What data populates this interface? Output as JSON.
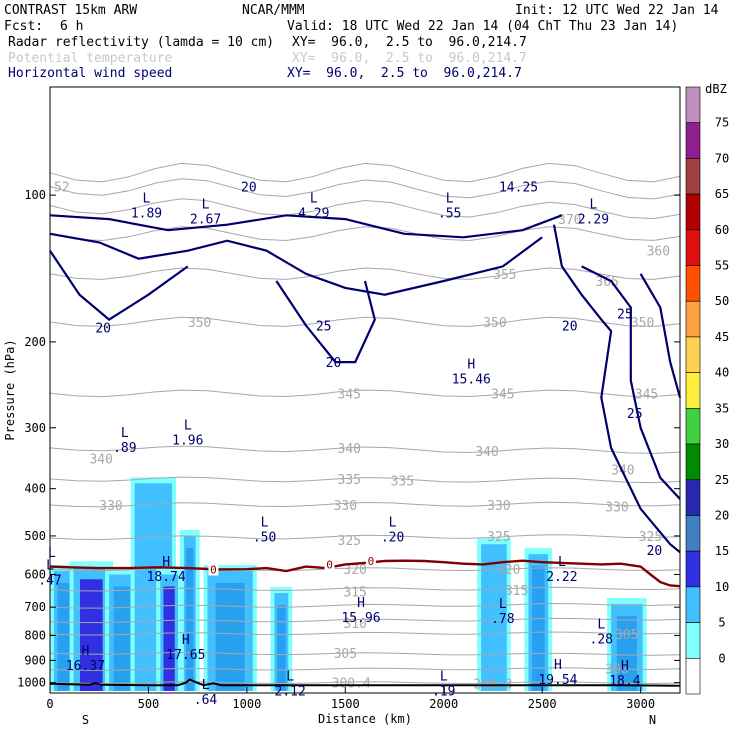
{
  "header": {
    "model": "CONTRAST 15km ARW",
    "org": "NCAR/MMM",
    "init": "Init: 12 UTC Wed 22 Jan 14",
    "fcst_label": "Fcst:",
    "fcst_value": "6 h",
    "valid": "Valid: 18 UTC Wed 22 Jan 14 (04 ChT Thu 23 Jan 14)",
    "fields": [
      {
        "name": "Radar reflectivity (lamda = 10 cm)",
        "xy": "XY=  96.0,  2.5 to  96.0,214.7"
      },
      {
        "name": "Potential temperature",
        "xy": "XY=  96.0,  2.5 to  96.0,214.7"
      },
      {
        "name": "Horizontal wind speed",
        "xy": "XY=  96.0,  2.5 to  96.0,214.7"
      }
    ]
  },
  "colors": {
    "reflectivity": [
      "#ffffff",
      "#80ffff",
      "#40c0ff",
      "#28a0f0",
      "#3030e0",
      "#2828b0",
      "#4060a0",
      "#8020a0",
      "#a040a0",
      "#c080c0"
    ],
    "levels_high": [
      "#ff9e40",
      "#ff6a00",
      "#ff2a00",
      "#d80000",
      "#b00000",
      "#a03030",
      "#902090",
      "#b070b0",
      "#d0a0d0"
    ],
    "theta": "#a8a8a8",
    "wind": "#00006e",
    "freezing": "#800000",
    "terrain": "#000000"
  },
  "chart_data": {
    "type": "cross-section",
    "x": {
      "label": "Distance (km)",
      "range": [
        0,
        3200
      ],
      "ticks": [
        0,
        500,
        1000,
        1500,
        2000,
        2500,
        3000
      ],
      "left_end": "S",
      "right_end": "N"
    },
    "y": {
      "label": "Pressure (hPa)",
      "range": [
        1050,
        60
      ],
      "scale": "log",
      "ticks": [
        100,
        200,
        300,
        400,
        500,
        600,
        700,
        800,
        900,
        1000
      ]
    },
    "colorbar": {
      "unit": "dBZ",
      "levels": [
        0,
        5,
        10,
        15,
        20,
        25,
        30,
        35,
        40,
        45,
        50,
        55,
        60,
        65,
        70,
        75
      ]
    },
    "theta_labels": [
      {
        "text": "300.4",
        "x": 1530,
        "p": 1000
      },
      {
        "text": "299.3",
        "x": 2250,
        "p": 1005
      },
      {
        "text": "300",
        "x": 2880,
        "p": 935
      },
      {
        "text": "305",
        "x": 1500,
        "p": 870
      },
      {
        "text": "305",
        "x": 2930,
        "p": 795
      },
      {
        "text": "310",
        "x": 1550,
        "p": 755
      },
      {
        "text": "315",
        "x": 1550,
        "p": 650
      },
      {
        "text": "315",
        "x": 2370,
        "p": 645
      },
      {
        "text": "320",
        "x": 1550,
        "p": 585
      },
      {
        "text": "320",
        "x": 2330,
        "p": 585
      },
      {
        "text": "325",
        "x": 1520,
        "p": 510
      },
      {
        "text": "325",
        "x": 2280,
        "p": 500
      },
      {
        "text": "325",
        "x": 3050,
        "p": 500
      },
      {
        "text": "330",
        "x": 310,
        "p": 432
      },
      {
        "text": "330",
        "x": 1500,
        "p": 432
      },
      {
        "text": "330",
        "x": 2280,
        "p": 432
      },
      {
        "text": "330",
        "x": 2880,
        "p": 435
      },
      {
        "text": "335",
        "x": 1520,
        "p": 382
      },
      {
        "text": "335",
        "x": 1790,
        "p": 385
      },
      {
        "text": "340",
        "x": 2910,
        "p": 365
      },
      {
        "text": "340",
        "x": 1520,
        "p": 330
      },
      {
        "text": "340",
        "x": 2220,
        "p": 335
      },
      {
        "text": "340",
        "x": 260,
        "p": 347
      },
      {
        "text": "345",
        "x": 1520,
        "p": 255
      },
      {
        "text": "345",
        "x": 2300,
        "p": 255
      },
      {
        "text": "345",
        "x": 3030,
        "p": 255
      },
      {
        "text": "350",
        "x": 760,
        "p": 182
      },
      {
        "text": "350",
        "x": 2260,
        "p": 182
      },
      {
        "text": "350",
        "x": 3010,
        "p": 182
      },
      {
        "text": "355",
        "x": 2310,
        "p": 145
      },
      {
        "text": "360",
        "x": 3090,
        "p": 130
      },
      {
        "text": "365",
        "x": 2830,
        "p": 150
      },
      {
        "text": "370",
        "x": 2640,
        "p": 112
      },
      {
        "text": "52",
        "x": 60,
        "p": 96
      }
    ],
    "wind_labels": [
      {
        "text": "20",
        "x": 1010,
        "p": 96
      },
      {
        "text": "20",
        "x": 270,
        "p": 187
      },
      {
        "text": "20",
        "x": 1440,
        "p": 220
      },
      {
        "text": "20",
        "x": 2640,
        "p": 185
      },
      {
        "text": "20",
        "x": 3070,
        "p": 535
      },
      {
        "text": "25",
        "x": 1390,
        "p": 185
      },
      {
        "text": "25",
        "x": 2920,
        "p": 175
      },
      {
        "text": "25",
        "x": 2970,
        "p": 280
      },
      {
        "text": "14.25",
        "x": 2380,
        "p": 96
      }
    ],
    "freezing_level": {
      "label": "0",
      "x": [
        0,
        100,
        250,
        400,
        550,
        700,
        850,
        1000,
        1100,
        1200,
        1300,
        1400,
        1500,
        1600,
        1700,
        1800,
        1900,
        2000,
        2100,
        2200,
        2300,
        2400,
        2500,
        2600,
        2700,
        2800,
        2900,
        3000,
        3050,
        3100,
        3150,
        3200
      ],
      "p": [
        578,
        580,
        582,
        582,
        580,
        582,
        586,
        585,
        582,
        590,
        578,
        582,
        572,
        568,
        563,
        562,
        563,
        566,
        570,
        572,
        566,
        562,
        566,
        568,
        570,
        572,
        570,
        578,
        600,
        622,
        632,
        634
      ]
    },
    "extrema": [
      {
        "type": "L",
        "value": "1.89",
        "x": 490,
        "p": 105
      },
      {
        "type": "L",
        "value": "2.67",
        "x": 790,
        "p": 108
      },
      {
        "type": "L",
        "value": "4.29",
        "x": 1340,
        "p": 105
      },
      {
        "type": "L",
        "value": ".55",
        "x": 2030,
        "p": 105
      },
      {
        "type": "L",
        "value": "2.29",
        "x": 2760,
        "p": 108
      },
      {
        "type": "H",
        "value": "15.46",
        "x": 2140,
        "p": 230
      },
      {
        "type": "L",
        "value": ".89",
        "x": 380,
        "p": 318
      },
      {
        "type": "L",
        "value": "1.96",
        "x": 700,
        "p": 307
      },
      {
        "type": "L",
        "value": ".50",
        "x": 1090,
        "p": 485
      },
      {
        "type": "L",
        "value": ".20",
        "x": 1740,
        "p": 485
      },
      {
        "type": "L",
        "value": "",
        "x": 10,
        "p": 560
      },
      {
        "type": "L",
        "value": ".47",
        "x": 0,
        "p": 595
      },
      {
        "type": "H",
        "value": "18.74",
        "x": 590,
        "p": 585
      },
      {
        "type": "L",
        "value": "2.22",
        "x": 2600,
        "p": 585
      },
      {
        "type": "H",
        "value": "15.96",
        "x": 1580,
        "p": 710
      },
      {
        "type": "L",
        "value": ".78",
        "x": 2300,
        "p": 712
      },
      {
        "type": "L",
        "value": ".28",
        "x": 2800,
        "p": 785
      },
      {
        "type": "H",
        "value": "17.65",
        "x": 690,
        "p": 845
      },
      {
        "type": "H",
        "value": "16.37",
        "x": 180,
        "p": 890
      },
      {
        "type": "H",
        "value": "19.54",
        "x": 2580,
        "p": 950
      },
      {
        "type": "H",
        "value": "18.4",
        "x": 2920,
        "p": 955
      },
      {
        "type": "L",
        "value": "2.12",
        "x": 1220,
        "p": 1005
      },
      {
        "type": "L",
        "value": ".19",
        "x": 2000,
        "p": 1005
      },
      {
        "type": "L",
        "value": ".64",
        "x": 790,
        "p": 1045
      }
    ],
    "reflectivity_cells": [
      {
        "x0": 20,
        "x1": 120,
        "ptop": 590,
        "pbot": 1040,
        "dbz": 15
      },
      {
        "x0": 120,
        "x1": 300,
        "ptop": 580,
        "pbot": 1040,
        "dbz": 20
      },
      {
        "x0": 300,
        "x1": 430,
        "ptop": 600,
        "pbot": 1040,
        "dbz": 15
      },
      {
        "x0": 430,
        "x1": 620,
        "ptop": 390,
        "pbot": 1040,
        "dbz": 10
      },
      {
        "x0": 560,
        "x1": 650,
        "ptop": 600,
        "pbot": 1040,
        "dbz": 20
      },
      {
        "x0": 680,
        "x1": 740,
        "ptop": 500,
        "pbot": 1040,
        "dbz": 15
      },
      {
        "x0": 800,
        "x1": 1030,
        "ptop": 590,
        "pbot": 1040,
        "dbz": 15
      },
      {
        "x0": 1140,
        "x1": 1210,
        "ptop": 655,
        "pbot": 1040,
        "dbz": 15
      },
      {
        "x0": 2190,
        "x1": 2320,
        "ptop": 520,
        "pbot": 1040,
        "dbz": 10
      },
      {
        "x0": 2430,
        "x1": 2530,
        "ptop": 545,
        "pbot": 1040,
        "dbz": 15
      },
      {
        "x0": 2850,
        "x1": 3010,
        "ptop": 690,
        "pbot": 1040,
        "dbz": 15
      }
    ]
  },
  "marks": {
    "freezing_0": "0"
  }
}
